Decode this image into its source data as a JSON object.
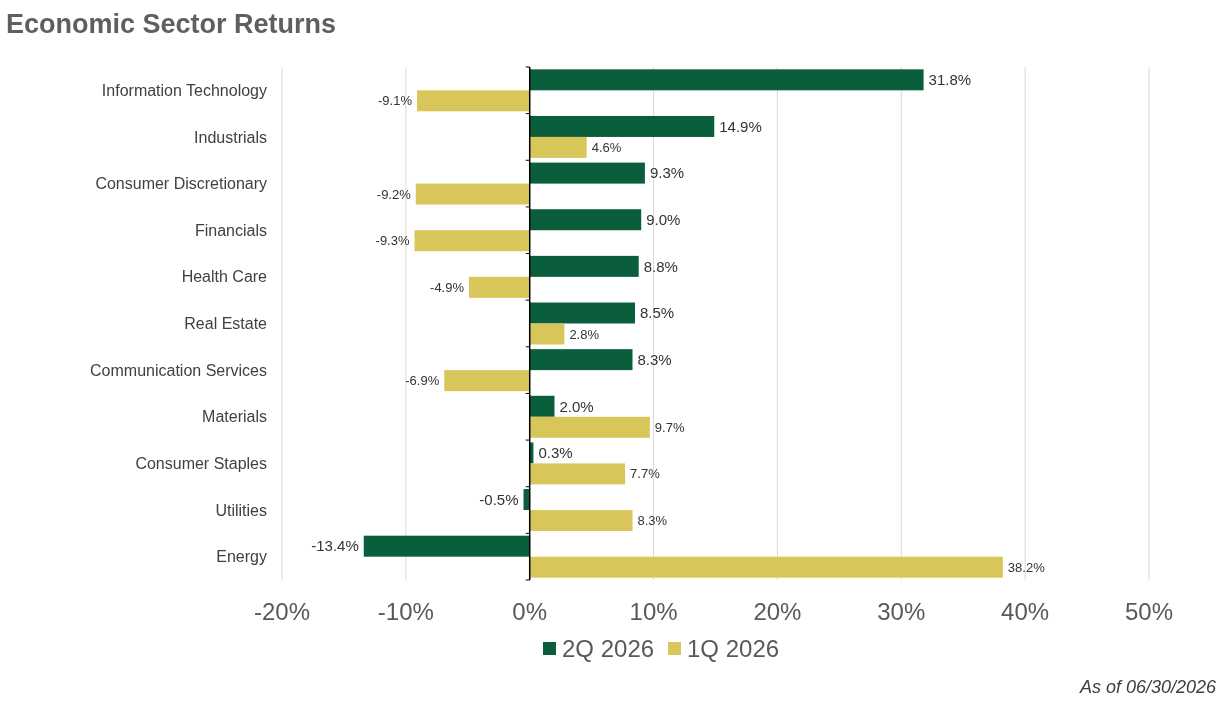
{
  "chart_data": {
    "type": "bar",
    "orientation": "horizontal",
    "title": "Economic Sector Returns",
    "categories": [
      "Information Technology",
      "Industrials",
      "Consumer Discretionary",
      "Financials",
      "Health Care",
      "Real Estate",
      "Communication Services",
      "Materials",
      "Consumer Staples",
      "Utilities",
      "Energy"
    ],
    "series": [
      {
        "name": "2Q 2026",
        "color": "#0b5e3b",
        "values": [
          31.8,
          14.9,
          9.3,
          9.0,
          8.8,
          8.5,
          8.3,
          2.0,
          0.3,
          -0.5,
          -13.4
        ],
        "value_labels": [
          "31.8%",
          "14.9%",
          "9.3%",
          "9.0%",
          "8.8%",
          "8.5%",
          "8.3%",
          "2.0%",
          "0.3%",
          "-0.5%",
          "-13.4%"
        ]
      },
      {
        "name": "1Q 2026",
        "color": "#d9c65a",
        "values": [
          -9.1,
          4.6,
          -9.2,
          -9.3,
          -4.9,
          2.8,
          -6.9,
          9.7,
          7.7,
          8.3,
          38.2
        ],
        "value_labels": [
          "-9.1%",
          "4.6%",
          "-9.2%",
          "-9.3%",
          "-4.9%",
          "2.8%",
          "-6.9%",
          "9.7%",
          "7.7%",
          "8.3%",
          "38.2%"
        ]
      }
    ],
    "xlim": [
      -20,
      50
    ],
    "xticks": [
      {
        "value": -20,
        "label": "-20%"
      },
      {
        "value": -10,
        "label": "-10%"
      },
      {
        "value": 0,
        "label": "0%"
      },
      {
        "value": 10,
        "label": "10%"
      },
      {
        "value": 20,
        "label": "20%"
      },
      {
        "value": 30,
        "label": "30%"
      },
      {
        "value": 40,
        "label": "40%"
      },
      {
        "value": 50,
        "label": "50%"
      }
    ],
    "grid": "x",
    "legend": "bottom",
    "annotations": [
      "As of 06/30/2026"
    ]
  }
}
